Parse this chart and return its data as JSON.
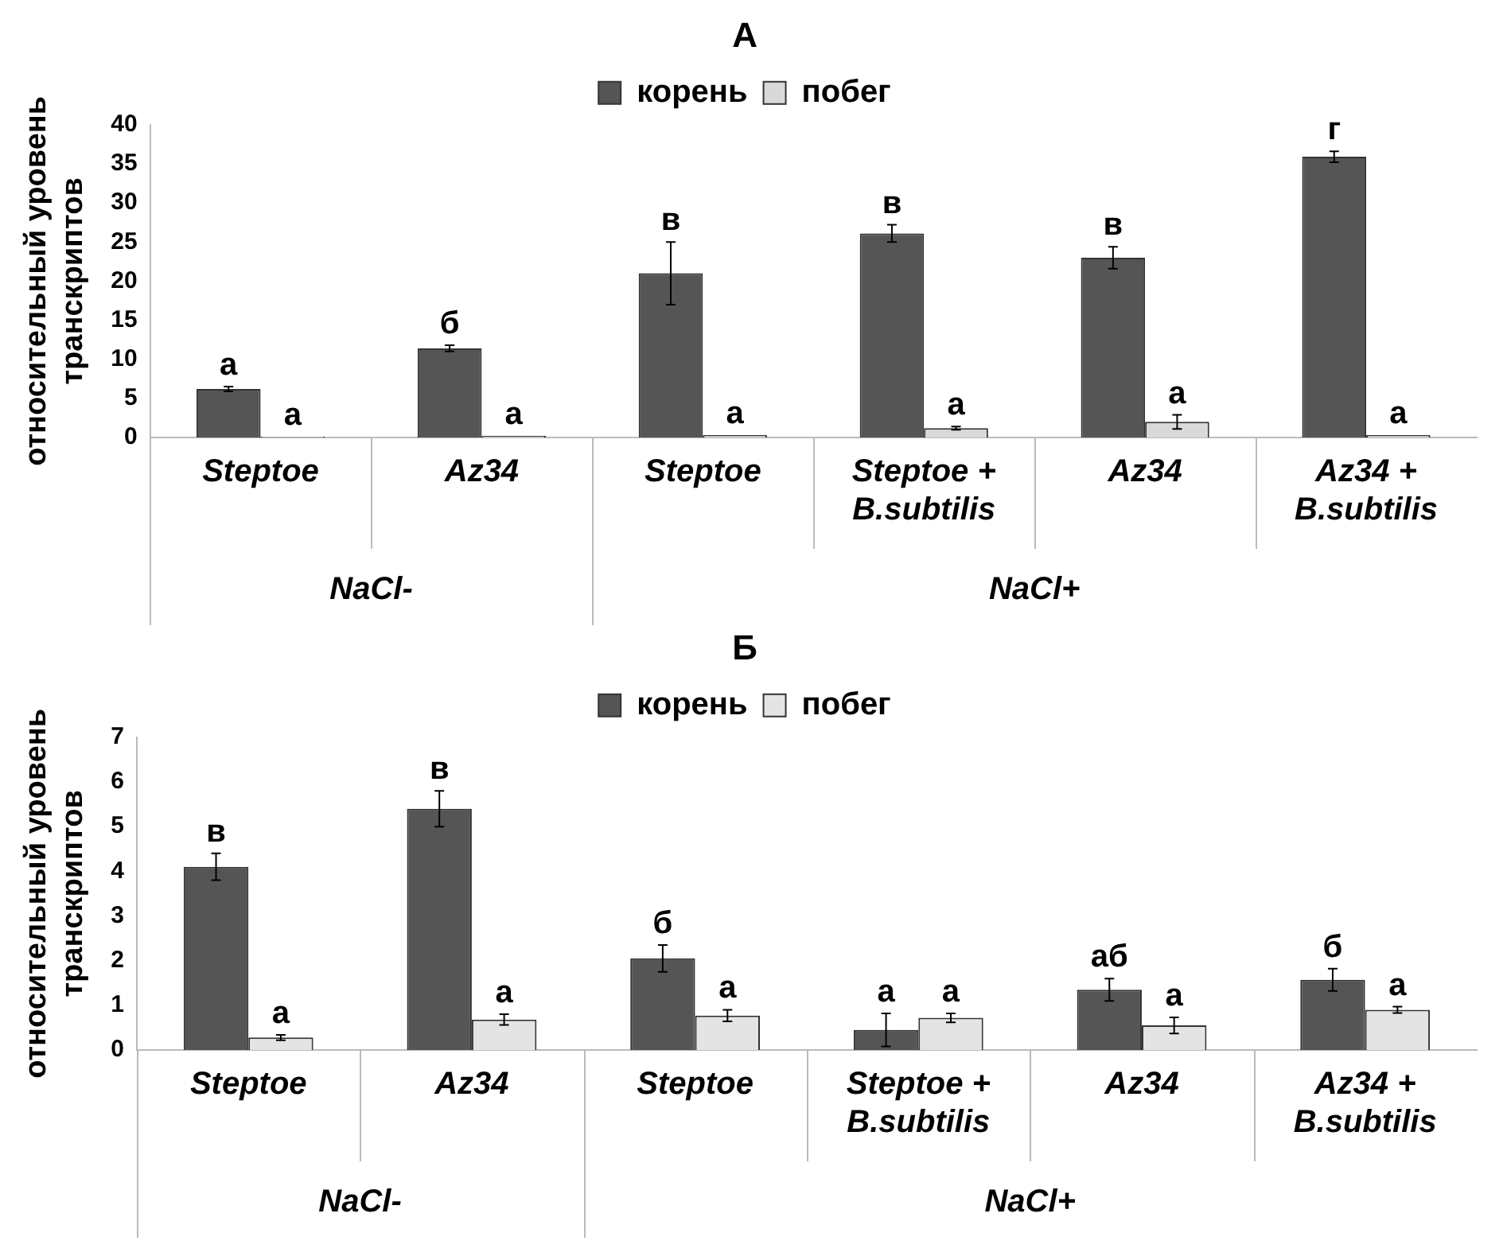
{
  "chart_data": [
    {
      "type": "bar",
      "title": "А",
      "ylabel": "относительный уровень транскриптов",
      "categories": [
        "Steptoe",
        "Az34",
        "Steptoe",
        "Steptoe + B.subtilis",
        "Az34",
        "Az34 + B.subtilis"
      ],
      "ylim": [
        0,
        40
      ],
      "yticks": [
        0,
        5,
        10,
        15,
        20,
        25,
        30,
        35,
        40
      ],
      "grid": false,
      "legend": "top",
      "annotations": [
        "NaCl-",
        "NaCl+"
      ],
      "series": [
        {
          "name": "корень",
          "color": "#555555",
          "values": [
            6.2,
            11.4,
            21,
            26.1,
            23,
            35.9
          ],
          "errors": [
            0.3,
            0.4,
            4,
            1.1,
            1.4,
            0.7
          ],
          "value_labels": [
            "а",
            "б",
            "в",
            "в",
            "в",
            "г"
          ]
        },
        {
          "name": "побег",
          "color": "#d9d9d9",
          "values": [
            0.1,
            0.2,
            0.3,
            1.2,
            2.0,
            0.3
          ],
          "errors": [
            null,
            null,
            null,
            0.2,
            0.9,
            null
          ],
          "value_labels": [
            "а",
            "а",
            "а",
            "а",
            "а",
            "а"
          ]
        }
      ]
    },
    {
      "type": "bar",
      "title": "Б",
      "ylabel": "относительный уровень транскриптов",
      "categories": [
        "Steptoe",
        "Az34",
        "Steptoe",
        "Steptoe + B.subtilis",
        "Az34",
        "Az34 + B.subtilis"
      ],
      "ylim": [
        0,
        7
      ],
      "yticks": [
        0,
        1,
        2,
        3,
        4,
        5,
        6,
        7
      ],
      "grid": false,
      "legend": "top",
      "annotations": [
        "NaCl-",
        "NaCl+"
      ],
      "series": [
        {
          "name": "корень",
          "color": "#555555",
          "values": [
            4.1,
            5.4,
            2.05,
            0.45,
            1.35,
            1.57
          ],
          "errors": [
            0.3,
            0.4,
            0.3,
            0.37,
            0.25,
            0.25
          ],
          "value_labels": [
            "в",
            "в",
            "б",
            "а",
            "аб",
            "б"
          ]
        },
        {
          "name": "побег",
          "color": "#e4e4e4",
          "values": [
            0.28,
            0.68,
            0.77,
            0.72,
            0.55,
            0.9
          ],
          "errors": [
            0.06,
            0.12,
            0.13,
            0.1,
            0.18,
            0.07
          ],
          "value_labels": [
            "а",
            "а",
            "а",
            "а",
            "а",
            "а"
          ]
        }
      ]
    }
  ]
}
